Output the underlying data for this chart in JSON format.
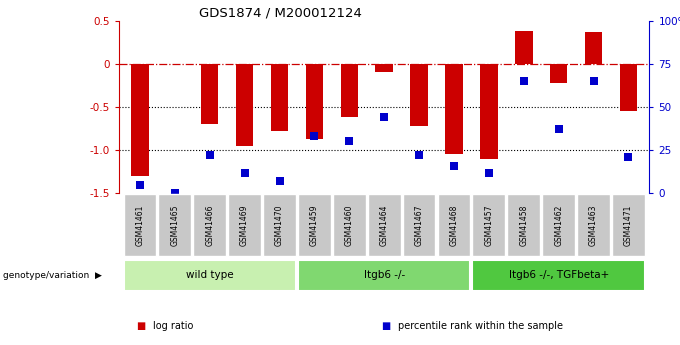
{
  "title": "GDS1874 / M200012124",
  "samples": [
    "GSM41461",
    "GSM41465",
    "GSM41466",
    "GSM41469",
    "GSM41470",
    "GSM41459",
    "GSM41460",
    "GSM41464",
    "GSM41467",
    "GSM41468",
    "GSM41457",
    "GSM41458",
    "GSM41462",
    "GSM41463",
    "GSM41471"
  ],
  "log_ratio": [
    -1.3,
    0.0,
    -0.7,
    -0.95,
    -0.78,
    -0.87,
    -0.62,
    -0.1,
    -0.72,
    -1.05,
    -1.1,
    0.38,
    -0.22,
    0.37,
    -0.55
  ],
  "percentile_rank": [
    5,
    0,
    22,
    12,
    7,
    33,
    30,
    44,
    22,
    16,
    12,
    65,
    37,
    65,
    21
  ],
  "groups": [
    {
      "label": "wild type",
      "start": 0,
      "end": 5,
      "color": "#c8f0b0"
    },
    {
      "label": "Itgb6 -/-",
      "start": 5,
      "end": 10,
      "color": "#80d870"
    },
    {
      "label": "Itgb6 -/-, TGFbeta+",
      "start": 10,
      "end": 15,
      "color": "#50c840"
    }
  ],
  "bar_color": "#cc0000",
  "dot_color": "#0000cc",
  "ylim_left": [
    -1.5,
    0.5
  ],
  "ylim_right": [
    0,
    100
  ],
  "yticks_left": [
    -1.5,
    -1.0,
    -0.5,
    0.0,
    0.5
  ],
  "yticks_right": [
    0,
    25,
    50,
    75,
    100
  ],
  "yticklabels_right": [
    "0",
    "25",
    "50",
    "75",
    "100%"
  ],
  "hline_y": 0.0,
  "dotted_lines": [
    -0.5,
    -1.0
  ],
  "legend_items": [
    {
      "label": "log ratio",
      "color": "#cc0000"
    },
    {
      "label": "percentile rank within the sample",
      "color": "#0000cc"
    }
  ],
  "genotype_label": "genotype/variation",
  "tick_label_bg": "#c8c8c8",
  "bar_width": 0.5,
  "dot_size": 28
}
